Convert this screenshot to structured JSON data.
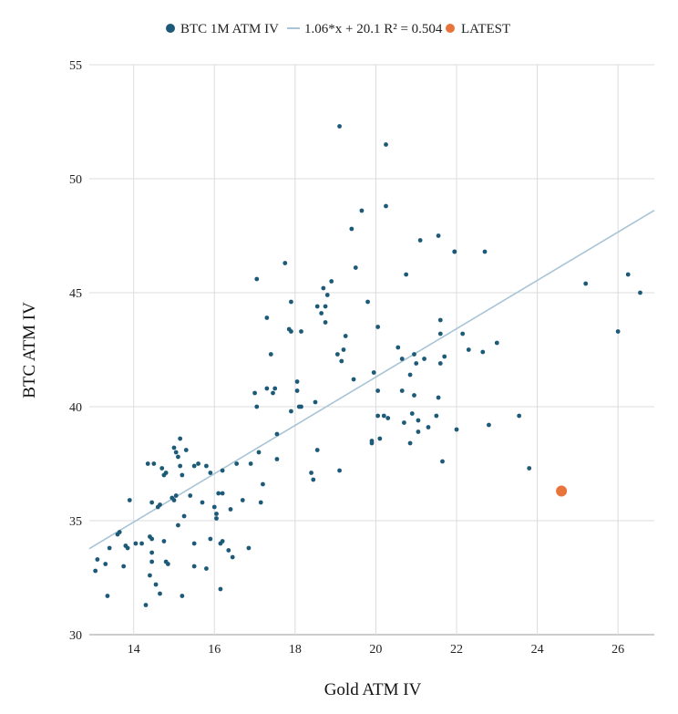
{
  "chart_data": {
    "type": "scatter",
    "xlabel": "Gold ATM IV",
    "ylabel": "BTC ATM IV",
    "xlim": [
      12.9,
      26.9
    ],
    "ylim": [
      30,
      55
    ],
    "x_ticks": [
      "14",
      "16",
      "18",
      "20",
      "22",
      "24",
      "26"
    ],
    "y_ticks": [
      "30",
      "35",
      "40",
      "45",
      "50",
      "55"
    ],
    "grid": true,
    "legend_position": "top-center",
    "legend": {
      "series_label": "BTC 1M ATM IV",
      "trend_label": "1.06*x + 20.1 R² = 0.504",
      "latest_label": "LATEST"
    },
    "colors": {
      "series": "#1d5a78",
      "trend": "#a9c4d6",
      "latest": "#e8743b",
      "grid": "#dcdcdc"
    },
    "trendline": {
      "slope": 1.06,
      "intercept": 20.1,
      "r2": 0.504
    },
    "latest": {
      "x": 24.6,
      "y": 36.3
    },
    "series": [
      {
        "name": "BTC 1M ATM IV",
        "points": [
          [
            13.05,
            32.8
          ],
          [
            13.1,
            33.3
          ],
          [
            13.3,
            33.1
          ],
          [
            13.35,
            31.7
          ],
          [
            13.4,
            33.8
          ],
          [
            13.6,
            34.4
          ],
          [
            13.65,
            34.5
          ],
          [
            13.75,
            33.0
          ],
          [
            13.8,
            33.9
          ],
          [
            13.85,
            33.8
          ],
          [
            13.9,
            35.9
          ],
          [
            14.05,
            34.0
          ],
          [
            14.2,
            34.0
          ],
          [
            14.3,
            31.3
          ],
          [
            14.35,
            37.5
          ],
          [
            14.4,
            34.3
          ],
          [
            14.45,
            35.8
          ],
          [
            14.45,
            34.2
          ],
          [
            14.4,
            32.6
          ],
          [
            14.45,
            33.6
          ],
          [
            14.45,
            33.2
          ],
          [
            14.5,
            37.5
          ],
          [
            14.55,
            32.2
          ],
          [
            14.6,
            35.6
          ],
          [
            14.65,
            35.7
          ],
          [
            14.65,
            31.8
          ],
          [
            14.7,
            37.3
          ],
          [
            14.75,
            37.0
          ],
          [
            14.75,
            34.1
          ],
          [
            14.8,
            37.1
          ],
          [
            14.8,
            33.2
          ],
          [
            14.85,
            33.1
          ],
          [
            14.95,
            36.0
          ],
          [
            15.0,
            38.2
          ],
          [
            15.0,
            35.9
          ],
          [
            15.05,
            38.0
          ],
          [
            15.05,
            36.1
          ],
          [
            15.1,
            37.8
          ],
          [
            15.1,
            34.8
          ],
          [
            15.15,
            38.6
          ],
          [
            15.15,
            37.4
          ],
          [
            15.2,
            37.0
          ],
          [
            15.2,
            31.7
          ],
          [
            15.25,
            35.2
          ],
          [
            15.3,
            38.1
          ],
          [
            15.4,
            36.1
          ],
          [
            15.5,
            37.4
          ],
          [
            15.5,
            34.0
          ],
          [
            15.5,
            33.0
          ],
          [
            15.6,
            37.5
          ],
          [
            15.7,
            35.8
          ],
          [
            15.8,
            37.4
          ],
          [
            15.8,
            32.9
          ],
          [
            15.9,
            37.1
          ],
          [
            15.9,
            34.2
          ],
          [
            16.0,
            35.6
          ],
          [
            16.05,
            35.3
          ],
          [
            16.05,
            35.1
          ],
          [
            16.1,
            36.2
          ],
          [
            16.15,
            32.0
          ],
          [
            16.15,
            34.0
          ],
          [
            16.2,
            37.2
          ],
          [
            16.2,
            36.2
          ],
          [
            16.2,
            34.1
          ],
          [
            16.35,
            33.7
          ],
          [
            16.4,
            35.5
          ],
          [
            16.45,
            33.4
          ],
          [
            16.55,
            37.5
          ],
          [
            16.7,
            35.9
          ],
          [
            16.85,
            33.8
          ],
          [
            16.9,
            37.5
          ],
          [
            17.0,
            40.6
          ],
          [
            17.05,
            40.0
          ],
          [
            17.05,
            45.6
          ],
          [
            17.1,
            38.0
          ],
          [
            17.15,
            35.8
          ],
          [
            17.2,
            36.6
          ],
          [
            17.3,
            40.8
          ],
          [
            17.3,
            43.9
          ],
          [
            17.4,
            42.3
          ],
          [
            17.45,
            40.6
          ],
          [
            17.5,
            40.8
          ],
          [
            17.55,
            38.8
          ],
          [
            17.55,
            37.7
          ],
          [
            17.75,
            46.3
          ],
          [
            17.85,
            43.4
          ],
          [
            17.9,
            43.3
          ],
          [
            17.9,
            44.6
          ],
          [
            17.9,
            39.8
          ],
          [
            18.05,
            41.1
          ],
          [
            18.05,
            40.7
          ],
          [
            18.1,
            40.0
          ],
          [
            18.15,
            40.0
          ],
          [
            18.15,
            43.3
          ],
          [
            18.4,
            37.1
          ],
          [
            18.45,
            36.8
          ],
          [
            18.5,
            40.2
          ],
          [
            18.55,
            38.1
          ],
          [
            18.55,
            44.4
          ],
          [
            18.65,
            44.1
          ],
          [
            18.7,
            45.2
          ],
          [
            18.75,
            44.4
          ],
          [
            18.75,
            43.7
          ],
          [
            18.8,
            44.9
          ],
          [
            18.9,
            45.5
          ],
          [
            19.05,
            42.3
          ],
          [
            19.1,
            37.2
          ],
          [
            19.1,
            52.3
          ],
          [
            19.15,
            42.0
          ],
          [
            19.2,
            42.5
          ],
          [
            19.25,
            43.1
          ],
          [
            19.4,
            47.8
          ],
          [
            19.45,
            41.2
          ],
          [
            19.5,
            46.1
          ],
          [
            19.65,
            48.6
          ],
          [
            19.8,
            44.6
          ],
          [
            19.9,
            38.5
          ],
          [
            19.9,
            38.4
          ],
          [
            19.95,
            41.5
          ],
          [
            20.05,
            43.5
          ],
          [
            20.05,
            40.7
          ],
          [
            20.05,
            39.6
          ],
          [
            20.1,
            38.6
          ],
          [
            20.2,
            39.6
          ],
          [
            20.25,
            51.5
          ],
          [
            20.25,
            48.8
          ],
          [
            20.3,
            39.5
          ],
          [
            20.55,
            42.6
          ],
          [
            20.65,
            42.1
          ],
          [
            20.65,
            40.7
          ],
          [
            20.7,
            39.3
          ],
          [
            20.75,
            45.8
          ],
          [
            20.85,
            38.4
          ],
          [
            20.85,
            41.4
          ],
          [
            20.9,
            39.7
          ],
          [
            20.95,
            40.5
          ],
          [
            20.95,
            42.3
          ],
          [
            21.0,
            41.9
          ],
          [
            21.05,
            38.9
          ],
          [
            21.05,
            39.4
          ],
          [
            21.1,
            47.3
          ],
          [
            21.2,
            42.1
          ],
          [
            21.3,
            39.1
          ],
          [
            21.5,
            39.6
          ],
          [
            21.55,
            47.5
          ],
          [
            21.55,
            40.4
          ],
          [
            21.6,
            41.9
          ],
          [
            21.6,
            43.8
          ],
          [
            21.6,
            43.2
          ],
          [
            21.65,
            37.6
          ],
          [
            21.7,
            42.2
          ],
          [
            21.95,
            46.8
          ],
          [
            21.95,
            46.8
          ],
          [
            22.0,
            39.0
          ],
          [
            22.15,
            43.2
          ],
          [
            22.3,
            42.5
          ],
          [
            22.65,
            42.4
          ],
          [
            22.7,
            46.8
          ],
          [
            22.8,
            39.2
          ],
          [
            23.0,
            42.8
          ],
          [
            23.55,
            39.6
          ],
          [
            23.8,
            37.3
          ],
          [
            25.2,
            45.4
          ],
          [
            26.0,
            43.3
          ],
          [
            26.25,
            45.8
          ],
          [
            26.55,
            45.0
          ]
        ]
      }
    ]
  }
}
